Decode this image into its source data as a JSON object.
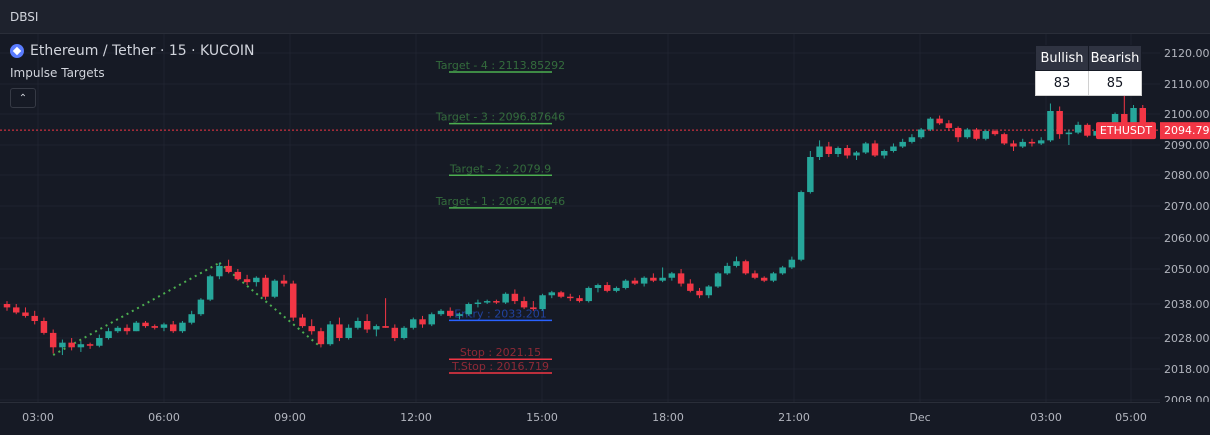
{
  "window": {
    "title": "DBSI"
  },
  "symbol": {
    "icon": "ethereum-icon",
    "text": "Ethereum / Tether · 15 · KUCOIN"
  },
  "indicator": {
    "name": "Impulse Targets",
    "collapse_icon": "chevron-up-icon"
  },
  "dbsi_table": {
    "headers": [
      "Bullish",
      "Bearish"
    ],
    "values": [
      "83",
      "85"
    ]
  },
  "levels": [
    {
      "label": "Target - 4 : 2113.85292",
      "price": 2113.85292,
      "color": "#4caf50"
    },
    {
      "label": "Target - 3 : 2096.87646",
      "price": 2096.87646,
      "color": "#4caf50"
    },
    {
      "label": "Target - 2 : 2079.9",
      "price": 2079.9,
      "color": "#4caf50"
    },
    {
      "label": "Target - 1 : 2069.40646",
      "price": 2069.40646,
      "color": "#4caf50"
    },
    {
      "label": "Entry : 2033.201",
      "price": 2033.201,
      "color": "#2962ff"
    },
    {
      "label": "Stop : 2021.15",
      "price": 2021.15,
      "color": "#f23645"
    },
    {
      "label": "T.Stop : 2016.719",
      "price": 2016.719,
      "color": "#f23645"
    }
  ],
  "price_axis": {
    "ticks": [
      "2120.00",
      "2110.00",
      "2100.00",
      "2090.00",
      "2080.00",
      "2070.00",
      "2060.00",
      "2050.00",
      "2038.00",
      "2028.00",
      "2018.00",
      "2008.00"
    ],
    "last_price": "2094.79",
    "last_symbol": "ETHUSDT"
  },
  "time_axis": {
    "ticks": [
      "03:00",
      "06:00",
      "09:00",
      "12:00",
      "15:00",
      "18:00",
      "21:00",
      "Dec",
      "03:00",
      "05:00"
    ]
  },
  "colors": {
    "up": "#26a69a",
    "down": "#f23645",
    "background": "#161a25",
    "grid": "#1f2330"
  },
  "candles": [
    [
      2038.0,
      2039.0,
      2036.0,
      2037.0
    ],
    [
      2037.0,
      2038.0,
      2035.0,
      2035.5
    ],
    [
      2035.5,
      2037.0,
      2034.0,
      2034.5
    ],
    [
      2034.5,
      2036.0,
      2032.0,
      2033.0
    ],
    [
      2033.0,
      2034.0,
      2029.0,
      2029.5
    ],
    [
      2029.5,
      2030.5,
      2023.0,
      2025.0
    ],
    [
      2025.0,
      2027.5,
      2022.5,
      2026.5
    ],
    [
      2026.5,
      2028.0,
      2024.0,
      2025.0
    ],
    [
      2025.0,
      2027.0,
      2023.5,
      2026.0
    ],
    [
      2026.0,
      2026.5,
      2024.5,
      2025.5
    ],
    [
      2025.5,
      2029.0,
      2025.0,
      2028.0
    ],
    [
      2028.0,
      2031.0,
      2027.5,
      2030.0
    ],
    [
      2030.0,
      2031.5,
      2029.5,
      2031.0
    ],
    [
      2031.0,
      2032.0,
      2029.0,
      2030.0
    ],
    [
      2030.0,
      2033.0,
      2030.0,
      2032.5
    ],
    [
      2032.5,
      2033.0,
      2031.0,
      2031.5
    ],
    [
      2031.5,
      2032.0,
      2030.5,
      2031.0
    ],
    [
      2031.0,
      2032.5,
      2030.0,
      2032.0
    ],
    [
      2032.0,
      2033.0,
      2029.5,
      2030.0
    ],
    [
      2030.0,
      2033.0,
      2029.5,
      2032.5
    ],
    [
      2032.5,
      2036.0,
      2032.0,
      2035.0
    ],
    [
      2035.0,
      2040.0,
      2034.5,
      2039.5
    ],
    [
      2039.5,
      2048.0,
      2039.0,
      2047.5
    ],
    [
      2047.5,
      2052.0,
      2046.5,
      2051.0
    ],
    [
      2051.0,
      2053.0,
      2048.5,
      2049.0
    ],
    [
      2049.0,
      2050.0,
      2046.0,
      2046.5
    ],
    [
      2046.5,
      2048.0,
      2044.5,
      2045.5
    ],
    [
      2045.5,
      2047.5,
      2044.0,
      2047.0
    ],
    [
      2047.0,
      2048.0,
      2039.5,
      2040.5
    ],
    [
      2040.5,
      2046.5,
      2040.0,
      2046.0
    ],
    [
      2046.0,
      2048.0,
      2044.0,
      2045.0
    ],
    [
      2045.0,
      2046.0,
      2033.0,
      2034.0
    ],
    [
      2034.0,
      2035.0,
      2031.0,
      2031.5
    ],
    [
      2031.5,
      2033.5,
      2029.0,
      2030.0
    ],
    [
      2030.0,
      2031.0,
      2025.0,
      2026.0
    ],
    [
      2026.0,
      2033.0,
      2025.5,
      2032.0
    ],
    [
      2032.0,
      2034.0,
      2027.0,
      2028.0
    ],
    [
      2028.0,
      2032.0,
      2027.5,
      2031.0
    ],
    [
      2031.0,
      2034.0,
      2030.5,
      2033.0
    ],
    [
      2033.0,
      2035.0,
      2029.5,
      2030.5
    ],
    [
      2030.5,
      2032.0,
      2028.5,
      2031.5
    ],
    [
      2031.5,
      2040.0,
      2031.0,
      2031.0
    ],
    [
      2031.0,
      2032.0,
      2027.0,
      2028.0
    ],
    [
      2028.0,
      2031.5,
      2027.5,
      2031.0
    ],
    [
      2031.0,
      2034.0,
      2030.5,
      2033.5
    ],
    [
      2033.5,
      2034.5,
      2031.0,
      2032.0
    ],
    [
      2032.0,
      2035.5,
      2031.5,
      2035.0
    ],
    [
      2035.0,
      2036.5,
      2034.5,
      2036.0
    ],
    [
      2036.0,
      2037.0,
      2034.0,
      2034.5
    ],
    [
      2034.5,
      2035.5,
      2033.5,
      2035.0
    ],
    [
      2035.0,
      2038.5,
      2034.5,
      2038.0
    ],
    [
      2038.0,
      2039.5,
      2037.0,
      2038.5
    ],
    [
      2038.5,
      2039.5,
      2038.0,
      2039.0
    ],
    [
      2039.0,
      2039.5,
      2038.0,
      2038.5
    ],
    [
      2038.5,
      2042.0,
      2038.0,
      2041.5
    ],
    [
      2041.5,
      2043.0,
      2038.0,
      2039.0
    ],
    [
      2039.0,
      2040.5,
      2036.5,
      2037.0
    ],
    [
      2037.0,
      2039.0,
      2036.0,
      2036.5
    ],
    [
      2036.5,
      2041.5,
      2036.0,
      2041.0
    ],
    [
      2041.0,
      2042.5,
      2040.0,
      2042.0
    ],
    [
      2042.0,
      2042.5,
      2040.0,
      2040.5
    ],
    [
      2040.5,
      2041.5,
      2039.0,
      2040.0
    ],
    [
      2040.0,
      2041.0,
      2038.5,
      2039.0
    ],
    [
      2039.0,
      2044.0,
      2038.5,
      2043.5
    ],
    [
      2043.5,
      2045.0,
      2042.0,
      2044.5
    ],
    [
      2044.5,
      2045.5,
      2042.0,
      2042.5
    ],
    [
      2042.5,
      2044.0,
      2042.0,
      2043.5
    ],
    [
      2043.5,
      2046.5,
      2043.0,
      2046.0
    ],
    [
      2046.0,
      2047.0,
      2044.5,
      2045.0
    ],
    [
      2045.0,
      2047.5,
      2044.0,
      2047.0
    ],
    [
      2047.0,
      2048.5,
      2045.5,
      2046.0
    ],
    [
      2046.0,
      2050.5,
      2045.5,
      2047.0
    ],
    [
      2047.0,
      2049.0,
      2046.0,
      2048.5
    ],
    [
      2048.5,
      2050.0,
      2044.0,
      2045.0
    ],
    [
      2045.0,
      2046.5,
      2042.0,
      2042.5
    ],
    [
      2042.5,
      2043.5,
      2040.0,
      2041.0
    ],
    [
      2041.0,
      2044.5,
      2040.0,
      2044.0
    ],
    [
      2044.0,
      2049.0,
      2043.5,
      2048.5
    ],
    [
      2048.5,
      2052.0,
      2048.0,
      2051.0
    ],
    [
      2051.0,
      2054.0,
      2050.5,
      2052.5
    ],
    [
      2052.5,
      2053.0,
      2048.0,
      2048.5
    ],
    [
      2048.5,
      2049.5,
      2046.5,
      2047.0
    ],
    [
      2047.0,
      2047.5,
      2045.5,
      2046.0
    ],
    [
      2046.0,
      2049.0,
      2045.5,
      2048.5
    ],
    [
      2048.5,
      2051.0,
      2048.0,
      2050.5
    ],
    [
      2050.5,
      2054.0,
      2050.0,
      2053.0
    ],
    [
      2053.0,
      2075.0,
      2052.5,
      2074.5
    ],
    [
      2074.5,
      2088.0,
      2074.0,
      2086.0
    ],
    [
      2086.0,
      2091.5,
      2085.0,
      2089.5
    ],
    [
      2089.5,
      2091.0,
      2086.0,
      2087.0
    ],
    [
      2087.0,
      2089.5,
      2086.0,
      2089.0
    ],
    [
      2089.0,
      2090.0,
      2085.5,
      2086.5
    ],
    [
      2086.5,
      2088.0,
      2085.0,
      2087.5
    ],
    [
      2087.5,
      2091.0,
      2087.0,
      2090.5
    ],
    [
      2090.5,
      2091.5,
      2086.0,
      2086.5
    ],
    [
      2086.5,
      2088.5,
      2085.5,
      2088.0
    ],
    [
      2088.0,
      2090.5,
      2087.5,
      2089.5
    ],
    [
      2089.5,
      2092.0,
      2089.0,
      2091.0
    ],
    [
      2091.0,
      2093.5,
      2090.5,
      2092.5
    ],
    [
      2092.5,
      2095.5,
      2092.0,
      2095.0
    ],
    [
      2095.0,
      2099.0,
      2094.5,
      2098.5
    ],
    [
      2098.5,
      2099.5,
      2096.5,
      2097.0
    ],
    [
      2097.0,
      2098.0,
      2094.5,
      2095.5
    ],
    [
      2095.5,
      2096.0,
      2091.0,
      2092.5
    ],
    [
      2092.5,
      2095.5,
      2092.0,
      2095.0
    ],
    [
      2095.0,
      2095.5,
      2091.5,
      2092.0
    ],
    [
      2092.0,
      2095.0,
      2091.5,
      2094.5
    ],
    [
      2094.5,
      2095.0,
      2093.0,
      2093.5
    ],
    [
      2093.5,
      2094.0,
      2090.0,
      2090.5
    ],
    [
      2090.5,
      2091.5,
      2088.0,
      2089.5
    ],
    [
      2089.5,
      2092.0,
      2089.0,
      2091.0
    ],
    [
      2091.0,
      2092.0,
      2089.5,
      2090.5
    ],
    [
      2090.5,
      2092.5,
      2090.0,
      2091.5
    ],
    [
      2091.5,
      2103.5,
      2091.0,
      2101.0
    ],
    [
      2101.0,
      2102.5,
      2092.0,
      2093.5
    ],
    [
      2093.5,
      2095.0,
      2090.0,
      2094.0
    ],
    [
      2094.0,
      2097.5,
      2093.5,
      2096.5
    ],
    [
      2096.5,
      2097.0,
      2092.5,
      2093.0
    ],
    [
      2093.0,
      2095.0,
      2092.5,
      2094.5
    ],
    [
      2094.5,
      2097.0,
      2094.0,
      2095.5
    ],
    [
      2095.5,
      2100.5,
      2095.0,
      2100.0
    ],
    [
      2100.0,
      2110.0,
      2094.0,
      2095.0
    ],
    [
      2095.0,
      2103.0,
      2094.5,
      2102.0
    ],
    [
      2102.0,
      2103.0,
      2094.0,
      2096.5
    ],
    [
      2096.5,
      2097.5,
      2094.0,
      2094.79
    ]
  ]
}
